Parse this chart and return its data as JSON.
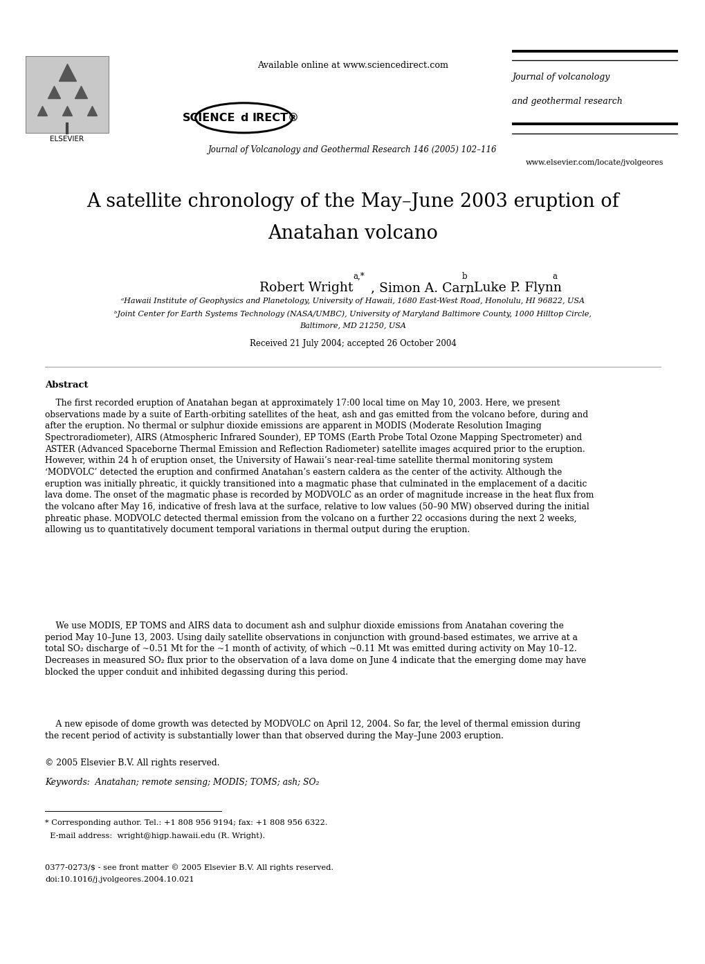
{
  "bg": "#ffffff",
  "title1": "A satellite chronology of the May–June 2003 eruption of",
  "title2": "Anatahan volcano",
  "affil_a": "ᵃHawaii Institute of Geophysics and Planetology, University of Hawaii, 1680 East-West Road, Honolulu, HI 96822, USA",
  "affil_b1": "ᵇJoint Center for Earth Systems Technology (NASA/UMBC), University of Maryland Baltimore County, 1000 Hilltop Circle,",
  "affil_b2": "Baltimore, MD 21250, USA",
  "received": "Received 21 July 2004; accepted 26 October 2004",
  "available": "Available online at www.sciencedirect.com",
  "journal_cite": "Journal of Volcanology and Geothermal Research 146 (2005) 102–116",
  "jname1": "Journal of volcanology",
  "jname2": "and geothermal research",
  "website": "www.elsevier.com/locate/jvolgeores",
  "abs_label": "Abstract",
  "abs_p1": "    The first recorded eruption of Anatahan began at approximately 17:00 local time on May 10, 2003. Here, we present\nobservations made by a suite of Earth-orbiting satellites of the heat, ash and gas emitted from the volcano before, during and\nafter the eruption. No thermal or sulphur dioxide emissions are apparent in MODIS (Moderate Resolution Imaging\nSpectroradiometer), AIRS (Atmospheric Infrared Sounder), EP TOMS (Earth Probe Total Ozone Mapping Spectrometer) and\nASTER (Advanced Spaceborne Thermal Emission and Reflection Radiometer) satellite images acquired prior to the eruption.\nHowever, within 24 h of eruption onset, the University of Hawaii’s near-real-time satellite thermal monitoring system\n‘MODVOLC’ detected the eruption and confirmed Anatahan’s eastern caldera as the center of the activity. Although the\neruption was initially phreatic, it quickly transitioned into a magmatic phase that culminated in the emplacement of a dacitic\nlava dome. The onset of the magmatic phase is recorded by MODVOLC as an order of magnitude increase in the heat flux from\nthe volcano after May 16, indicative of fresh lava at the surface, relative to low values (50–90 MW) observed during the initial\nphreatic phase. MODVOLC detected thermal emission from the volcano on a further 22 occasions during the next 2 weeks,\nallowing us to quantitatively document temporal variations in thermal output during the eruption.",
  "abs_p2": "    We use MODIS, EP TOMS and AIRS data to document ash and sulphur dioxide emissions from Anatahan covering the\nperiod May 10–June 13, 2003. Using daily satellite observations in conjunction with ground-based estimates, we arrive at a\ntotal SO₂ discharge of ~0.51 Mt for the ~1 month of activity, of which ~0.11 Mt was emitted during activity on May 10–12.\nDecreases in measured SO₂ flux prior to the observation of a lava dome on June 4 indicate that the emerging dome may have\nblocked the upper conduit and inhibited degassing during this period.",
  "abs_p3": "    A new episode of dome growth was detected by MODVOLC on April 12, 2004. So far, the level of thermal emission during\nthe recent period of activity is substantially lower than that observed during the May–June 2003 eruption.",
  "abs_copy": "© 2005 Elsevier B.V. All rights reserved.",
  "keywords": "Keywords:  Anatahan; remote sensing; MODIS; TOMS; ash; SO₂",
  "fn1": "* Corresponding author. Tel.: +1 808 956 9194; fax: +1 808 956 6322.",
  "fn2": "  E-mail address:  wright@higp.hawaii.edu (R. Wright).",
  "issn": "0377-0273/$ - see front matter © 2005 Elsevier B.V. All rights reserved.",
  "doi": "doi:10.1016/j.jvolgeores.2004.10.021",
  "science_left": "SCIENCE",
  "science_right": "IRECT®",
  "elsevier_label": "ELSEVIER"
}
